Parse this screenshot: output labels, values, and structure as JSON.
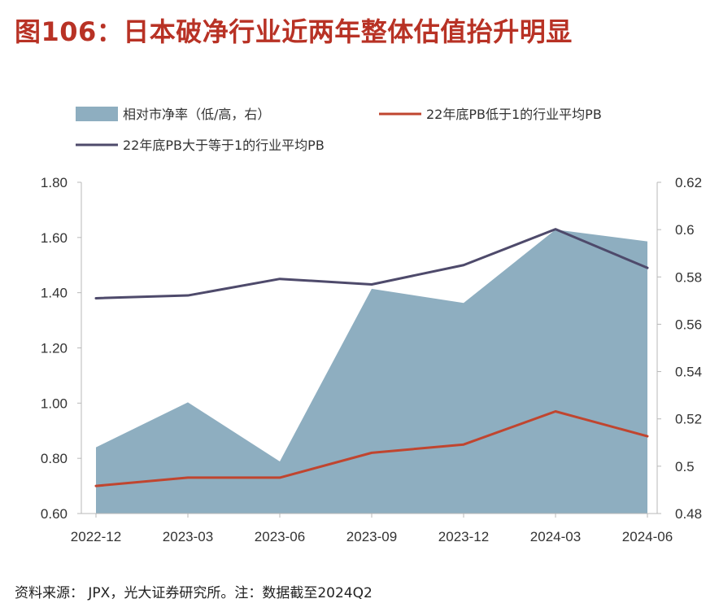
{
  "title": "图106：日本破净行业近两年整体估值抬升明显",
  "source": "资料来源： JPX，光大证券研究所。注：数据截至2024Q2",
  "colors": {
    "title": "#b83225",
    "area": "#8eaec0",
    "red_line": "#c0452f",
    "dark_line": "#4e4a6b",
    "axis": "#b8b8b8"
  },
  "chart_data": {
    "type": "area",
    "categories": [
      "2022-12",
      "2023-03",
      "2023-06",
      "2023-09",
      "2023-12",
      "2024-03",
      "2024-06"
    ],
    "left_axis": {
      "min": 0.6,
      "max": 1.8,
      "step": 0.2,
      "ticks": [
        "0.60",
        "0.80",
        "1.00",
        "1.20",
        "1.40",
        "1.60",
        "1.80"
      ]
    },
    "right_axis": {
      "min": 0.48,
      "max": 0.62,
      "step": 0.02,
      "ticks": [
        "0.48",
        "0.5",
        "0.52",
        "0.54",
        "0.56",
        "0.58",
        "0.6",
        "0.62"
      ]
    },
    "legend_position": "top",
    "grid": false,
    "series": [
      {
        "name": "相对市净率（低/高，右）",
        "type": "area",
        "axis": "right",
        "color": "#8eaec0",
        "values": [
          0.508,
          0.527,
          0.502,
          0.575,
          0.569,
          0.6,
          0.595
        ]
      },
      {
        "name": "22年底PB低于1的行业平均PB",
        "type": "line",
        "axis": "left",
        "color": "#c0452f",
        "values": [
          0.7,
          0.73,
          0.73,
          0.82,
          0.85,
          0.97,
          0.88
        ]
      },
      {
        "name": "22年底PB大于等于1的行业平均PB",
        "type": "line",
        "axis": "left",
        "color": "#4e4a6b",
        "values": [
          1.38,
          1.39,
          1.45,
          1.43,
          1.5,
          1.63,
          1.49
        ]
      }
    ]
  }
}
